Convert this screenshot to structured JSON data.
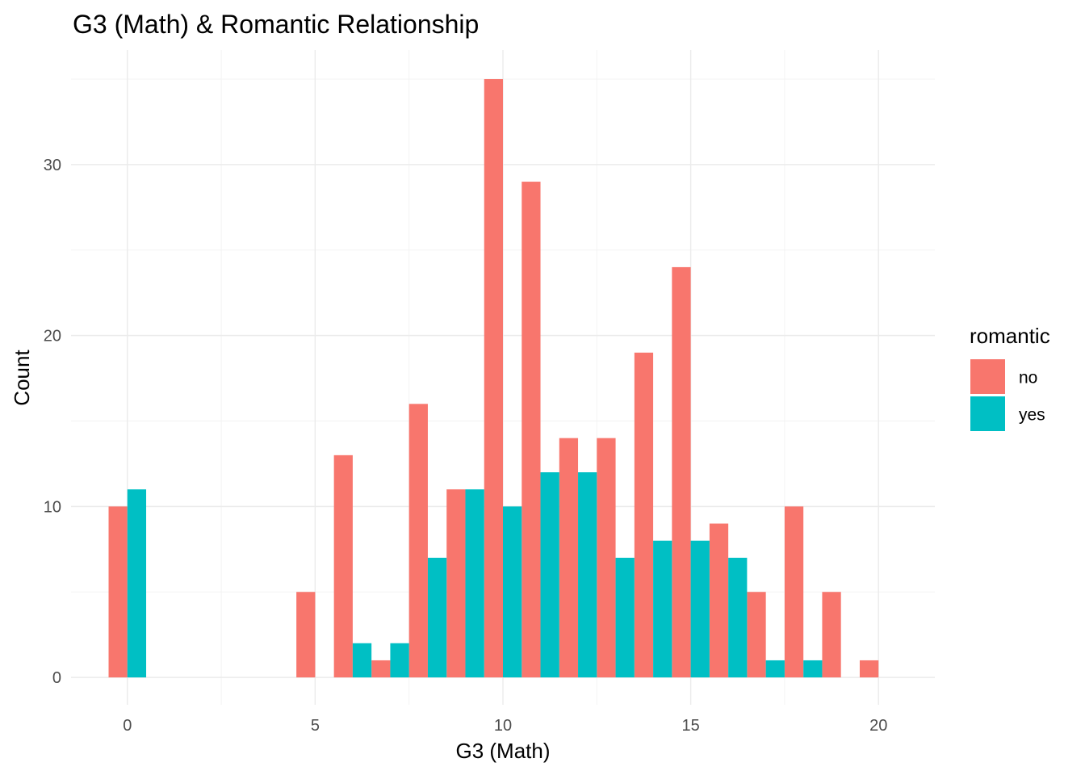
{
  "chart_data": {
    "type": "bar",
    "title": "G3 (Math) & Romantic Relationship",
    "xlabel": "G3 (Math)",
    "ylabel": "Count",
    "xlim": [
      -1.5,
      21.5
    ],
    "ylim": [
      -1.6,
      36.7
    ],
    "x_ticks": [
      0,
      5,
      10,
      15,
      20
    ],
    "y_ticks": [
      0,
      10,
      20,
      30
    ],
    "grid": true,
    "bar_width": 0.5,
    "legend": {
      "title": "romantic",
      "position": "right",
      "entries": [
        {
          "label": "no",
          "color": "#F8766D"
        },
        {
          "label": "yes",
          "color": "#00BFC4"
        }
      ]
    },
    "series": [
      {
        "name": "no",
        "color": "#F8766D",
        "points": [
          {
            "x": -0.25,
            "y": 10
          },
          {
            "x": 4.75,
            "y": 5
          },
          {
            "x": 5.75,
            "y": 13
          },
          {
            "x": 6.75,
            "y": 1
          },
          {
            "x": 7.75,
            "y": 16
          },
          {
            "x": 8.75,
            "y": 11
          },
          {
            "x": 9.75,
            "y": 35
          },
          {
            "x": 10.75,
            "y": 29
          },
          {
            "x": 11.75,
            "y": 14
          },
          {
            "x": 12.75,
            "y": 14
          },
          {
            "x": 13.75,
            "y": 19
          },
          {
            "x": 14.75,
            "y": 24
          },
          {
            "x": 15.75,
            "y": 9
          },
          {
            "x": 16.75,
            "y": 5
          },
          {
            "x": 17.75,
            "y": 10
          },
          {
            "x": 18.75,
            "y": 5
          },
          {
            "x": 19.75,
            "y": 1
          }
        ]
      },
      {
        "name": "yes",
        "color": "#00BFC4",
        "points": [
          {
            "x": 0.25,
            "y": 11
          },
          {
            "x": 6.25,
            "y": 2
          },
          {
            "x": 7.25,
            "y": 2
          },
          {
            "x": 8.25,
            "y": 7
          },
          {
            "x": 9.25,
            "y": 11
          },
          {
            "x": 10.25,
            "y": 10
          },
          {
            "x": 11.25,
            "y": 12
          },
          {
            "x": 12.25,
            "y": 12
          },
          {
            "x": 13.25,
            "y": 7
          },
          {
            "x": 14.25,
            "y": 8
          },
          {
            "x": 15.25,
            "y": 8
          },
          {
            "x": 16.25,
            "y": 7
          },
          {
            "x": 17.25,
            "y": 1
          },
          {
            "x": 18.25,
            "y": 1
          }
        ]
      }
    ]
  }
}
